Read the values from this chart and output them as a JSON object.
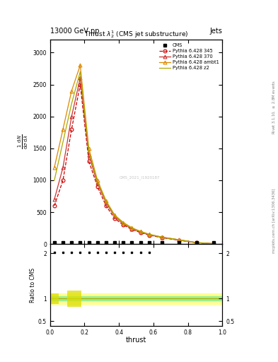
{
  "title": "Thrust $\\lambda_2^1$ (CMS jet substructure)",
  "header_left": "13000 GeV pp",
  "header_right": "Jets",
  "xlabel": "thrust",
  "ylabel_main": "$\\frac{1}{\\mathrm{d}\\sigma} \\frac{\\mathrm{d}^2N}{\\mathrm{d}\\lambda\\,\\mathrm{d}\\,\\mathrm{p}}$",
  "ylabel_ratio": "Ratio to CMS",
  "right_label_top": "Rivet 3.1.10, $\\geq$ 2.8M events",
  "right_label_bottom": "mcplots.cern.ch [arXiv:1306.3436]",
  "watermark": "CMS_2021_I1920187",
  "cms_x": [
    0.025,
    0.075,
    0.125,
    0.175,
    0.225,
    0.275,
    0.325,
    0.375,
    0.425,
    0.475,
    0.525,
    0.575,
    0.65,
    0.75,
    0.85,
    0.95
  ],
  "cms_y": [
    30,
    30,
    30,
    30,
    30,
    30,
    30,
    30,
    30,
    30,
    30,
    30,
    30,
    30,
    30,
    30
  ],
  "p345_x": [
    0.025,
    0.075,
    0.125,
    0.175,
    0.225,
    0.275,
    0.325,
    0.375,
    0.425,
    0.475,
    0.525,
    0.575,
    0.65,
    0.75,
    0.85,
    0.95
  ],
  "p345_y": [
    600,
    1000,
    1800,
    2500,
    1300,
    900,
    600,
    400,
    300,
    230,
    180,
    140,
    100,
    60,
    20,
    5
  ],
  "p370_x": [
    0.025,
    0.075,
    0.125,
    0.175,
    0.225,
    0.275,
    0.325,
    0.375,
    0.425,
    0.475,
    0.525,
    0.575,
    0.65,
    0.75,
    0.85,
    0.95
  ],
  "p370_y": [
    700,
    1200,
    2000,
    2600,
    1400,
    950,
    650,
    430,
    320,
    240,
    190,
    145,
    105,
    65,
    22,
    6
  ],
  "pambt1_x": [
    0.025,
    0.075,
    0.125,
    0.175,
    0.225,
    0.275,
    0.325,
    0.375,
    0.425,
    0.475,
    0.525,
    0.575,
    0.65,
    0.75,
    0.85,
    0.95
  ],
  "pambt1_y": [
    1200,
    1800,
    2400,
    2800,
    1500,
    1000,
    680,
    455,
    340,
    255,
    200,
    155,
    110,
    68,
    25,
    7
  ],
  "pz2_x": [
    0.025,
    0.075,
    0.125,
    0.175,
    0.225,
    0.275,
    0.325,
    0.375,
    0.425,
    0.475,
    0.525,
    0.575,
    0.65,
    0.75,
    0.85,
    0.95
  ],
  "pz2_y": [
    1000,
    1600,
    2200,
    2700,
    1450,
    980,
    665,
    445,
    330,
    248,
    195,
    150,
    108,
    66,
    23,
    6
  ],
  "color_345": "#cc0000",
  "color_370": "#cc3333",
  "color_ambt1": "#dd8800",
  "color_z2": "#aaaa00",
  "color_cms": "black",
  "ratio_band_green_lo": 0.95,
  "ratio_band_green_hi": 1.05,
  "ratio_band_yellow_lo": 0.88,
  "ratio_band_yellow_hi": 1.12,
  "ylim_main": [
    0,
    3200
  ],
  "ylim_ratio": [
    0.4,
    2.2
  ],
  "yticks_main": [
    0,
    500,
    1000,
    1500,
    2000,
    2500,
    3000
  ],
  "xlim": [
    0,
    1
  ]
}
